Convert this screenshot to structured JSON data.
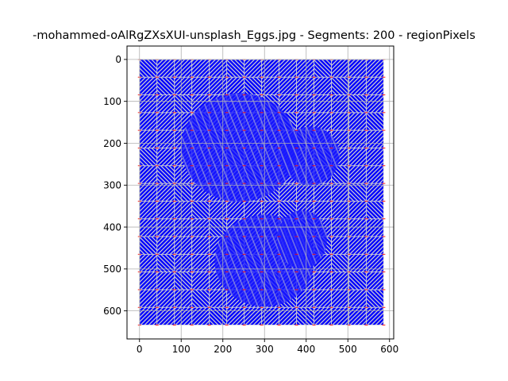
{
  "chart_data": {
    "type": "heatmap",
    "title": "-mohammed-oAlRgZXsXUI-unsplash_Eggs.jpg - Segments: 200 - regionPixels",
    "xlabel": "",
    "ylabel": "",
    "xlim": [
      -30,
      610
    ],
    "ylim": [
      667,
      -32
    ],
    "y_inverted": true,
    "grid": true,
    "xticks": [
      0,
      100,
      200,
      300,
      400,
      500,
      600
    ],
    "yticks": [
      0,
      100,
      200,
      300,
      400,
      500,
      600
    ],
    "image_extent": {
      "x": [
        0,
        586
      ],
      "y": [
        0,
        634
      ]
    },
    "segment_grid": {
      "cols": 14,
      "rows": 15
    },
    "egg_regions": [
      {
        "name": "upper-egg",
        "cx": 240,
        "cy": 210,
        "rx": 140,
        "ry": 130
      },
      {
        "name": "upper-egg-right",
        "cx": 410,
        "cy": 230,
        "rx": 70,
        "ry": 70
      },
      {
        "name": "lower-egg",
        "cx": 300,
        "cy": 480,
        "rx": 120,
        "ry": 110
      },
      {
        "name": "lower-egg-right",
        "cx": 390,
        "cy": 430,
        "rx": 60,
        "ry": 70
      }
    ],
    "colors": {
      "stripe": "#0000ff",
      "background": "#c8c8d4",
      "boundary": "#ff0000",
      "dense_fill": "#1a1aff"
    }
  }
}
